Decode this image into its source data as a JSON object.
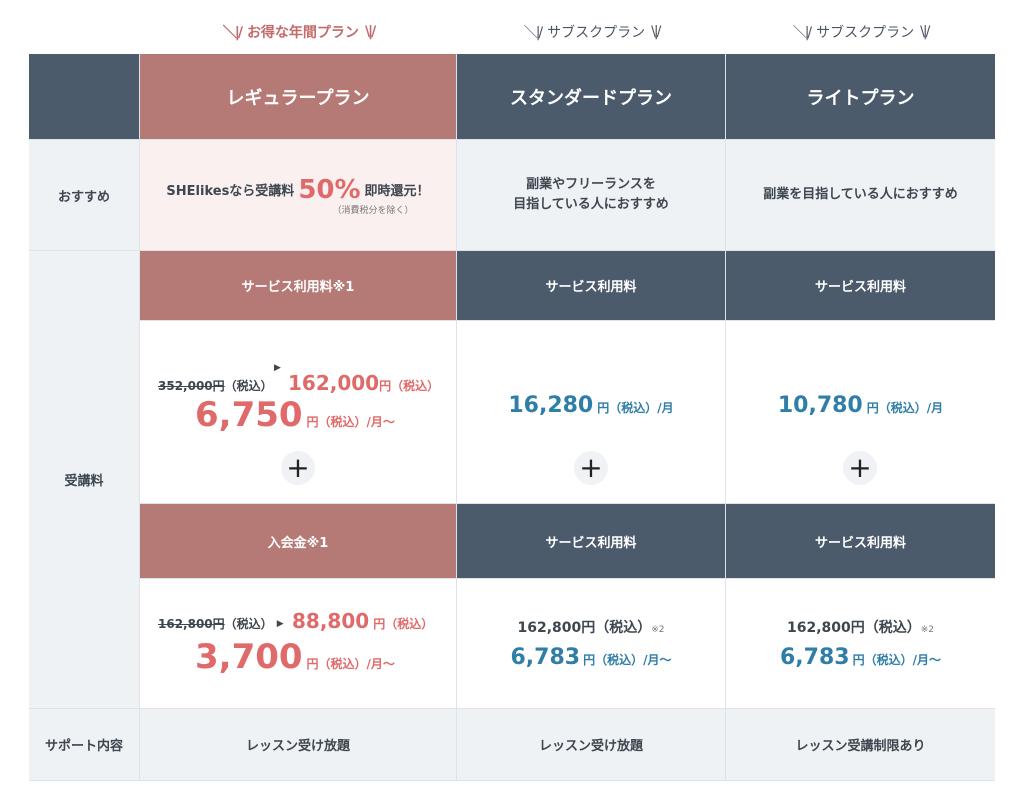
{
  "taglines": {
    "regular": "お得な年間プラン",
    "standard": "サブスクプラン",
    "light": "サブスクプラン"
  },
  "headers": {
    "regular": "レギュラープラン",
    "standard": "スタンダードプラン",
    "light": "ライトプラン"
  },
  "row_labels": {
    "recommend": "おすすめ",
    "fee": "受講料",
    "support": "サポート内容"
  },
  "recommend": {
    "regular_prefix": "SHElikesなら受講料",
    "regular_highlight": "50%",
    "regular_suffix": "即時還元！",
    "regular_note": "（消費税分を除く）",
    "standard_line1": "副業やフリーランスを",
    "standard_line2": "目指している人におすすめ",
    "light": "副業を目指している人におすすめ"
  },
  "service_fee": {
    "regular_label": "サービス利用料※1",
    "standard_label": "サービス利用料",
    "light_label": "サービス利用料",
    "regular_old": "352,000円",
    "regular_old_tax": "（税込）",
    "regular_new": "162,000",
    "regular_new_unit": "円（税込）",
    "regular_monthly": "6,750",
    "regular_monthly_unit": "円（税込）/月〜",
    "standard_price": "16,280",
    "standard_unit": "円（税込）/月",
    "light_price": "10,780",
    "light_unit": "円（税込）/月"
  },
  "join_fee": {
    "regular_label": "入会金※1",
    "standard_label": "サービス利用料",
    "light_label": "サービス利用料",
    "regular_old": "162,800円",
    "regular_old_tax": "（税込）",
    "regular_new": "88,800",
    "regular_new_unit": "円（税込）",
    "regular_monthly": "3,700",
    "regular_monthly_unit": "円（税込）/月〜",
    "standard_total": "162,800円（税込）",
    "standard_note": "※2",
    "standard_monthly": "6,783",
    "standard_monthly_unit": "円（税込）/月〜",
    "light_total": "162,800円（税込）",
    "light_note": "※2",
    "light_monthly": "6,783",
    "light_monthly_unit": "円（税込）/月〜"
  },
  "support": {
    "regular": "レッスン受け放題",
    "standard": "レッスン受け放題",
    "light": "レッスン受講制限あり"
  },
  "icons": {
    "plus": "+",
    "arrow": "▶"
  },
  "colors": {
    "regular_accent": "#b57a76",
    "navy": "#4b5b6b",
    "price_red": "#e06a6a",
    "price_blue": "#2f7ea8"
  }
}
